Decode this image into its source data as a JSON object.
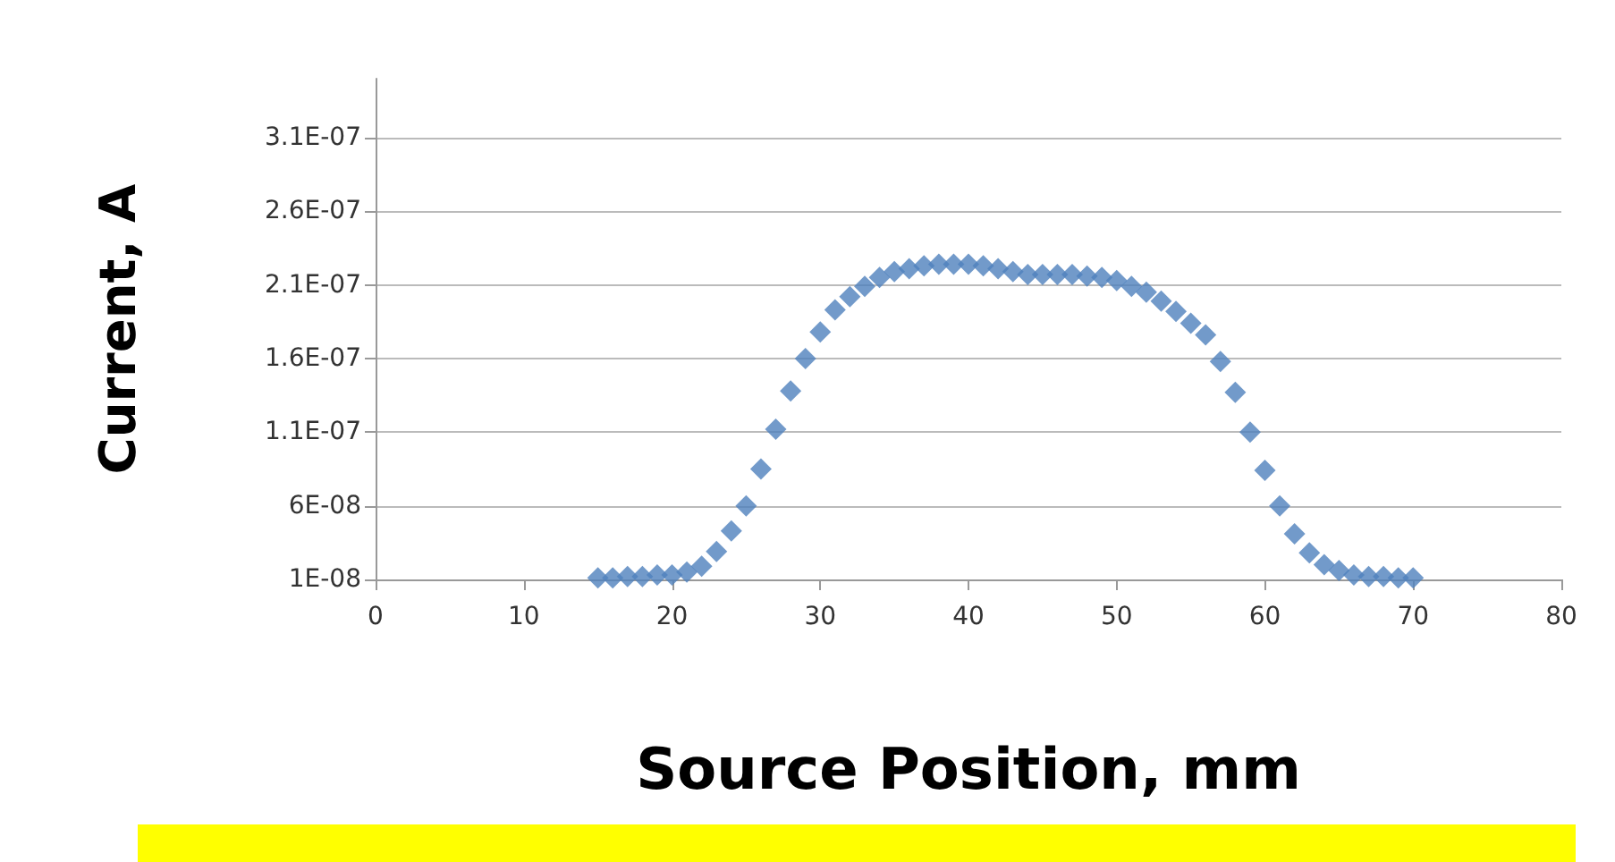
{
  "chart_data": {
    "type": "scatter",
    "xlabel": "Source Position, mm",
    "ylabel": "Current, A",
    "x": [
      15,
      16,
      17,
      18,
      19,
      20,
      21,
      22,
      23,
      24,
      25,
      26,
      27,
      28,
      29,
      30,
      31,
      32,
      33,
      34,
      35,
      36,
      37,
      38,
      39,
      40,
      41,
      42,
      43,
      44,
      45,
      46,
      47,
      48,
      49,
      50,
      51,
      52,
      53,
      54,
      55,
      56,
      57,
      58,
      59,
      60,
      61,
      62,
      63,
      64,
      65,
      66,
      67,
      68,
      69,
      70
    ],
    "series": [
      {
        "color": "#4f81bd",
        "values": [
          1.1e-08,
          1.1e-08,
          1.2e-08,
          1.2e-08,
          1.3e-08,
          1.3e-08,
          1.5e-08,
          1.9e-08,
          2.9e-08,
          4.3e-08,
          6e-08,
          8.5e-08,
          1.12e-07,
          1.38e-07,
          1.6e-07,
          1.78e-07,
          1.93e-07,
          2.02e-07,
          2.09e-07,
          2.15e-07,
          2.19e-07,
          2.21e-07,
          2.23e-07,
          2.24e-07,
          2.24e-07,
          2.24e-07,
          2.23e-07,
          2.21e-07,
          2.19e-07,
          2.17e-07,
          2.17e-07,
          2.17e-07,
          2.17e-07,
          2.16e-07,
          2.15e-07,
          2.13e-07,
          2.09e-07,
          2.05e-07,
          1.99e-07,
          1.92e-07,
          1.84e-07,
          1.76e-07,
          1.58e-07,
          1.37e-07,
          1.1e-07,
          8.4e-08,
          6e-08,
          4.1e-08,
          2.8e-08,
          2e-08,
          1.6e-08,
          1.3e-08,
          1.2e-08,
          1.2e-08,
          1.1e-08,
          1.1e-08
        ]
      }
    ],
    "xlim": [
      0,
      80
    ],
    "xticks": [
      0,
      10,
      20,
      30,
      40,
      50,
      60,
      70,
      80
    ],
    "ylim": [
      1e-08,
      3.5e-07
    ],
    "yticks": [
      {
        "value": 1e-08,
        "label": "1E-08"
      },
      {
        "value": 6e-08,
        "label": "6E-08"
      },
      {
        "value": 1.1e-07,
        "label": "1.1E-07"
      },
      {
        "value": 1.6e-07,
        "label": "1.6E-07"
      },
      {
        "value": 2.1e-07,
        "label": "2.1E-07"
      },
      {
        "value": 2.6e-07,
        "label": "2.6E-07"
      },
      {
        "value": 3.1e-07,
        "label": "3.1E-07"
      }
    ],
    "grid": "y",
    "marker": "diamond"
  }
}
